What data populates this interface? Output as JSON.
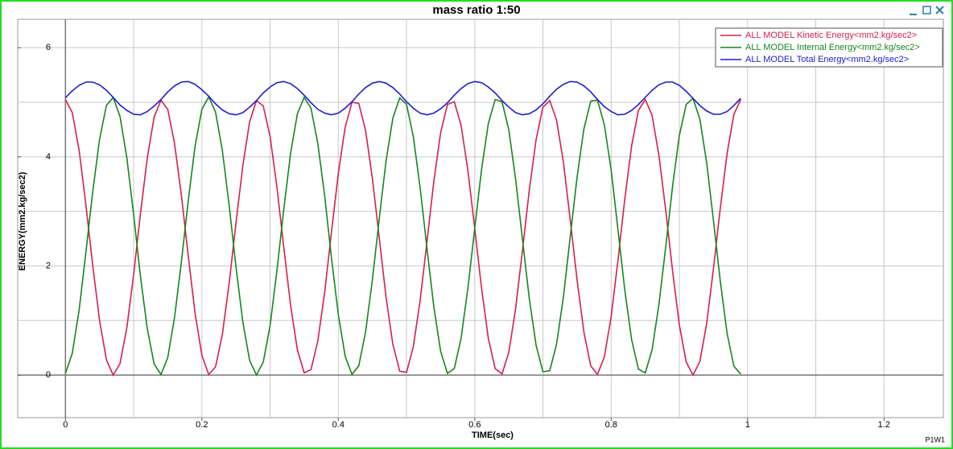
{
  "chart_data": {
    "type": "line",
    "title": "mass ratio 1:50",
    "xlabel": "TIME(sec)",
    "ylabel": "ENERGY(mm2.kg/sec2)",
    "footer": "P1W1",
    "xlim": [
      -0.07,
      1.287
    ],
    "ylim": [
      -0.78,
      6.52
    ],
    "xticks": [
      0,
      0.2,
      0.4,
      0.6,
      0.8,
      1,
      1.2
    ],
    "yticks": [
      0,
      2,
      4,
      6
    ],
    "xgrid": [
      0,
      0.1,
      0.2,
      0.3,
      0.4,
      0.5,
      0.6,
      0.7,
      0.8,
      0.9,
      1,
      1.1,
      1.2
    ],
    "ygrid": [
      0,
      1,
      2,
      3,
      4,
      5,
      6
    ],
    "grid": true,
    "legend": "upper right",
    "x": [
      0,
      0.01,
      0.02,
      0.03,
      0.04,
      0.05,
      0.06,
      0.07,
      0.08,
      0.09,
      0.1,
      0.11,
      0.12,
      0.13,
      0.14,
      0.15,
      0.16,
      0.17,
      0.18,
      0.19,
      0.2,
      0.21,
      0.22,
      0.23,
      0.24,
      0.25,
      0.26,
      0.27,
      0.28,
      0.29,
      0.3,
      0.31,
      0.32,
      0.33,
      0.34,
      0.35,
      0.36,
      0.37,
      0.38,
      0.39,
      0.4,
      0.41,
      0.42,
      0.43,
      0.44,
      0.45,
      0.46,
      0.47,
      0.48,
      0.49,
      0.5,
      0.51,
      0.52,
      0.53,
      0.54,
      0.55,
      0.56,
      0.57,
      0.58,
      0.59,
      0.6,
      0.61,
      0.62,
      0.63,
      0.64,
      0.65,
      0.66,
      0.67,
      0.68,
      0.69,
      0.7,
      0.71,
      0.72,
      0.73,
      0.74,
      0.75,
      0.76,
      0.77,
      0.78,
      0.79,
      0.8,
      0.81,
      0.82,
      0.83,
      0.84,
      0.85,
      0.86,
      0.87,
      0.88,
      0.89,
      0.9,
      0.91,
      0.92,
      0.93,
      0.94,
      0.95,
      0.96,
      0.97,
      0.98,
      0.99
    ],
    "series": [
      {
        "name": "ALL MODEL Kinetic Energy<mm2.kg/sec2>",
        "color": "#d81e4a",
        "values": [
          5.05,
          4.81,
          4.12,
          3.12,
          2.01,
          1.0,
          0.28,
          0.0,
          0.21,
          0.87,
          1.85,
          2.96,
          3.98,
          4.73,
          5.04,
          4.87,
          4.24,
          3.29,
          2.18,
          1.14,
          0.36,
          0.01,
          0.15,
          0.74,
          1.68,
          2.79,
          3.84,
          4.64,
          5.03,
          4.93,
          4.37,
          3.45,
          2.35,
          1.28,
          0.46,
          0.04,
          0.1,
          0.63,
          1.52,
          2.62,
          3.69,
          4.54,
          5.0,
          4.98,
          4.48,
          3.6,
          2.51,
          1.43,
          0.56,
          0.07,
          0.05,
          0.52,
          1.37,
          2.45,
          3.54,
          4.44,
          4.96,
          5.01,
          4.58,
          3.75,
          2.69,
          1.59,
          0.67,
          0.12,
          0.02,
          0.42,
          1.22,
          2.28,
          3.39,
          4.32,
          4.91,
          5.03,
          4.67,
          3.9,
          2.85,
          1.75,
          0.79,
          0.17,
          0.01,
          0.33,
          1.07,
          2.11,
          3.22,
          4.2,
          4.85,
          5.05,
          4.76,
          4.03,
          3.02,
          1.91,
          0.92,
          0.24,
          0.0,
          0.25,
          0.94,
          1.95,
          3.06,
          4.07,
          4.78,
          5.05
        ]
      },
      {
        "name": "ALL MODEL Internal Energy<mm2.kg/sec2>",
        "color": "#14861c",
        "values": [
          0.03,
          0.4,
          1.19,
          2.25,
          3.36,
          4.32,
          4.94,
          5.09,
          4.74,
          3.98,
          2.93,
          1.81,
          0.85,
          0.2,
          0.01,
          0.32,
          1.06,
          2.08,
          3.2,
          4.19,
          4.87,
          5.1,
          4.82,
          4.12,
          3.11,
          1.98,
          0.97,
          0.27,
          0.0,
          0.24,
          0.91,
          1.91,
          3.03,
          4.06,
          4.79,
          5.09,
          4.89,
          4.24,
          3.28,
          2.15,
          1.11,
          0.35,
          0.01,
          0.17,
          0.79,
          1.75,
          2.87,
          3.92,
          4.71,
          5.08,
          4.96,
          4.37,
          3.43,
          2.32,
          1.26,
          0.44,
          0.03,
          0.12,
          0.67,
          1.59,
          2.69,
          3.77,
          4.61,
          5.05,
          5.01,
          4.49,
          3.59,
          2.49,
          1.4,
          0.54,
          0.06,
          0.08,
          0.57,
          1.43,
          2.53,
          3.62,
          4.51,
          5.02,
          5.04,
          4.59,
          3.76,
          2.66,
          1.56,
          0.65,
          0.11,
          0.04,
          0.46,
          1.29,
          2.35,
          3.46,
          4.39,
          4.96,
          5.07,
          4.69,
          3.9,
          2.83,
          1.72,
          0.76,
          0.16,
          0.02
        ]
      },
      {
        "name": "ALL MODEL Total Energy<mm2.kg/sec2>",
        "color": "#1c1cd8",
        "values": [
          5.08,
          5.21,
          5.31,
          5.37,
          5.37,
          5.32,
          5.22,
          5.09,
          4.95,
          4.85,
          4.78,
          4.77,
          4.83,
          4.93,
          5.05,
          5.19,
          5.3,
          5.37,
          5.38,
          5.33,
          5.23,
          5.11,
          4.97,
          4.86,
          4.79,
          4.77,
          4.81,
          4.91,
          5.03,
          5.17,
          5.28,
          5.36,
          5.38,
          5.34,
          5.25,
          5.13,
          4.99,
          4.87,
          4.8,
          4.77,
          4.8,
          4.89,
          5.01,
          5.15,
          5.27,
          5.35,
          5.38,
          5.35,
          5.27,
          5.15,
          5.01,
          4.89,
          4.8,
          4.77,
          4.8,
          4.88,
          4.99,
          5.13,
          5.25,
          5.34,
          5.38,
          5.36,
          5.28,
          5.17,
          5.03,
          4.91,
          4.81,
          4.77,
          4.79,
          4.86,
          4.97,
          5.11,
          5.24,
          5.33,
          5.38,
          5.37,
          5.3,
          5.19,
          5.05,
          4.92,
          4.83,
          4.77,
          4.78,
          4.85,
          4.96,
          5.09,
          5.22,
          5.32,
          5.37,
          5.37,
          5.31,
          5.2,
          5.07,
          4.94,
          4.84,
          4.78,
          4.78,
          4.83,
          4.94,
          5.07
        ]
      }
    ]
  }
}
